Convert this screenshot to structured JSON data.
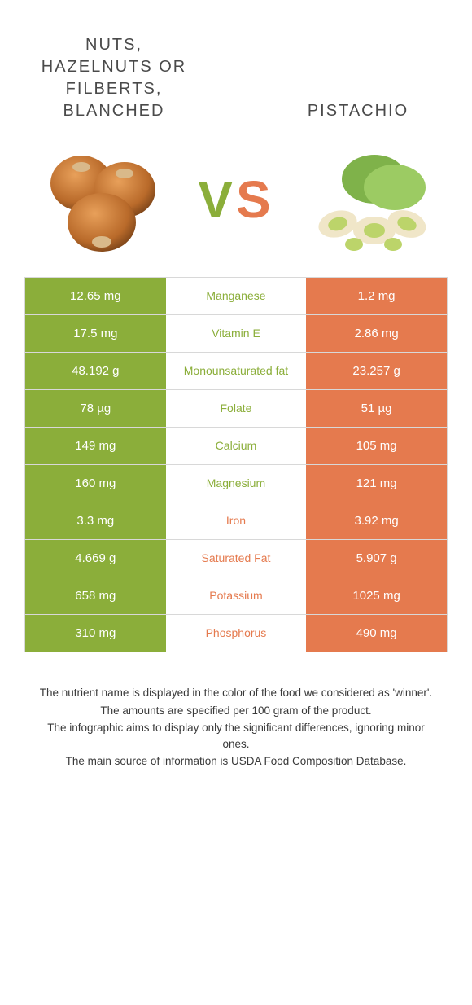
{
  "colors": {
    "left_bg": "#8bae3a",
    "right_bg": "#e57a4e",
    "mid_bg": "#ffffff",
    "border": "#d8d8d8",
    "text_white": "#ffffff",
    "title_color": "#4a4a4a",
    "footnote_color": "#3a3a3a"
  },
  "typography": {
    "title_fontsize": 20,
    "title_letter_spacing": 2,
    "vs_fontsize": 64,
    "cell_fontsize": 15,
    "mid_fontsize": 14,
    "footnote_fontsize": 13.5
  },
  "header": {
    "left_title": "Nuts, hazelnuts or filberts, blanched",
    "right_title": "Pistachio",
    "vs_v": "V",
    "vs_s": "S"
  },
  "rows": [
    {
      "nutrient": "Manganese",
      "left": "12.65 mg",
      "right": "1.2 mg",
      "winner": "left"
    },
    {
      "nutrient": "Vitamin E",
      "left": "17.5 mg",
      "right": "2.86 mg",
      "winner": "left"
    },
    {
      "nutrient": "Monounsaturated fat",
      "left": "48.192 g",
      "right": "23.257 g",
      "winner": "left"
    },
    {
      "nutrient": "Folate",
      "left": "78 µg",
      "right": "51 µg",
      "winner": "left"
    },
    {
      "nutrient": "Calcium",
      "left": "149 mg",
      "right": "105 mg",
      "winner": "left"
    },
    {
      "nutrient": "Magnesium",
      "left": "160 mg",
      "right": "121 mg",
      "winner": "left"
    },
    {
      "nutrient": "Iron",
      "left": "3.3 mg",
      "right": "3.92 mg",
      "winner": "right"
    },
    {
      "nutrient": "Saturated Fat",
      "left": "4.669 g",
      "right": "5.907 g",
      "winner": "right"
    },
    {
      "nutrient": "Potassium",
      "left": "658 mg",
      "right": "1025 mg",
      "winner": "right"
    },
    {
      "nutrient": "Phosphorus",
      "left": "310 mg",
      "right": "490 mg",
      "winner": "right"
    }
  ],
  "footnotes": [
    "The nutrient name is displayed in the color of the food we considered as 'winner'.",
    "The amounts are specified per 100 gram of the product.",
    "The infographic aims to display only the significant differences, ignoring minor ones.",
    "The main source of information is USDA Food Composition Database."
  ]
}
